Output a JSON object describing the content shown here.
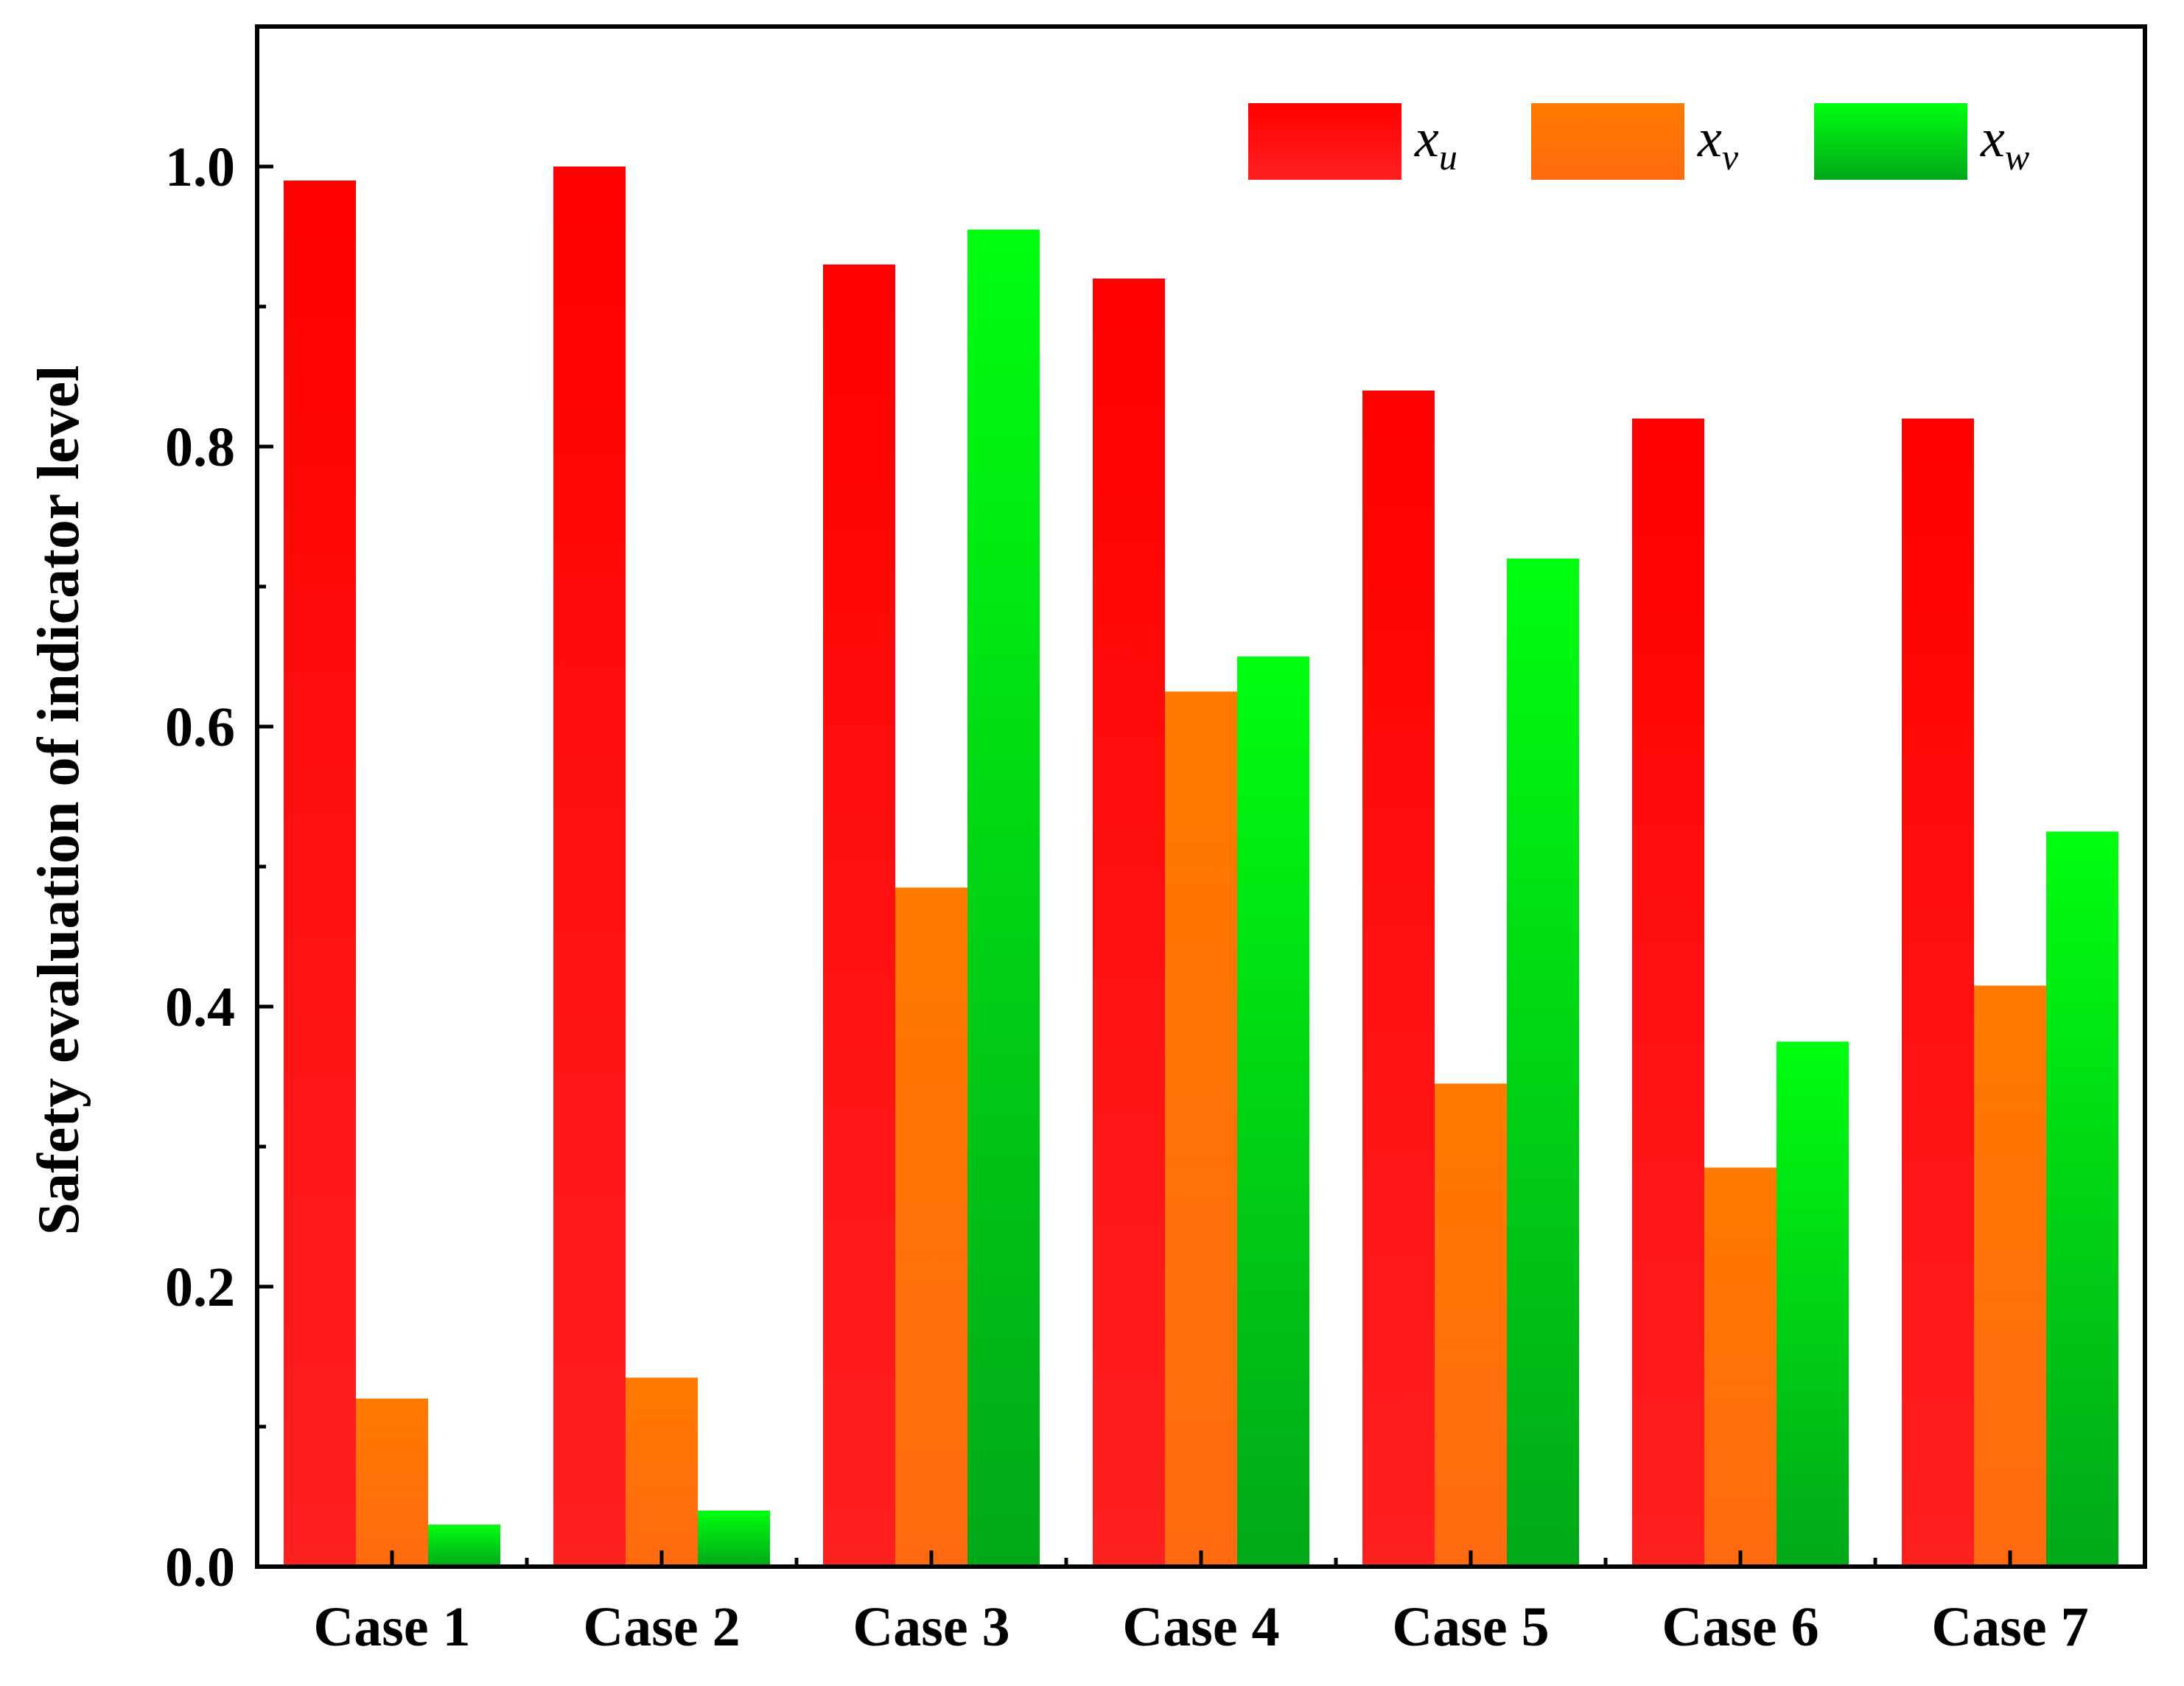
{
  "chart_data": {
    "type": "bar",
    "categories": [
      "Case 1",
      "Case 2",
      "Case 3",
      "Case 4",
      "Case 5",
      "Case 6",
      "Case 7"
    ],
    "series": [
      {
        "name": "x_u",
        "label_main": "x",
        "label_sub": "u",
        "color_top": "#ff0000",
        "color_bottom": "#ff2020",
        "values": [
          0.99,
          1.0,
          0.93,
          0.92,
          0.84,
          0.82,
          0.82
        ]
      },
      {
        "name": "x_v",
        "label_main": "x",
        "label_sub": "v",
        "color_top": "#ff7a00",
        "color_bottom": "#ff6a10",
        "values": [
          0.12,
          0.135,
          0.485,
          0.625,
          0.345,
          0.285,
          0.415
        ]
      },
      {
        "name": "x_w",
        "label_main": "x",
        "label_sub": "w",
        "color_top": "#00ff10",
        "color_bottom": "#00a818",
        "values": [
          0.03,
          0.04,
          0.955,
          0.65,
          0.72,
          0.375,
          0.525
        ]
      }
    ],
    "ylabel": "Safety evaluation of indicator level",
    "xlabel": "",
    "ylim": [
      0,
      1.1
    ],
    "yticks": [
      "0.0",
      "0.2",
      "0.4",
      "0.6",
      "0.8",
      "1.0"
    ],
    "ytick_values": [
      0,
      0.2,
      0.4,
      0.6,
      0.8,
      1.0
    ],
    "grid": false,
    "legend_position": "top-right"
  }
}
